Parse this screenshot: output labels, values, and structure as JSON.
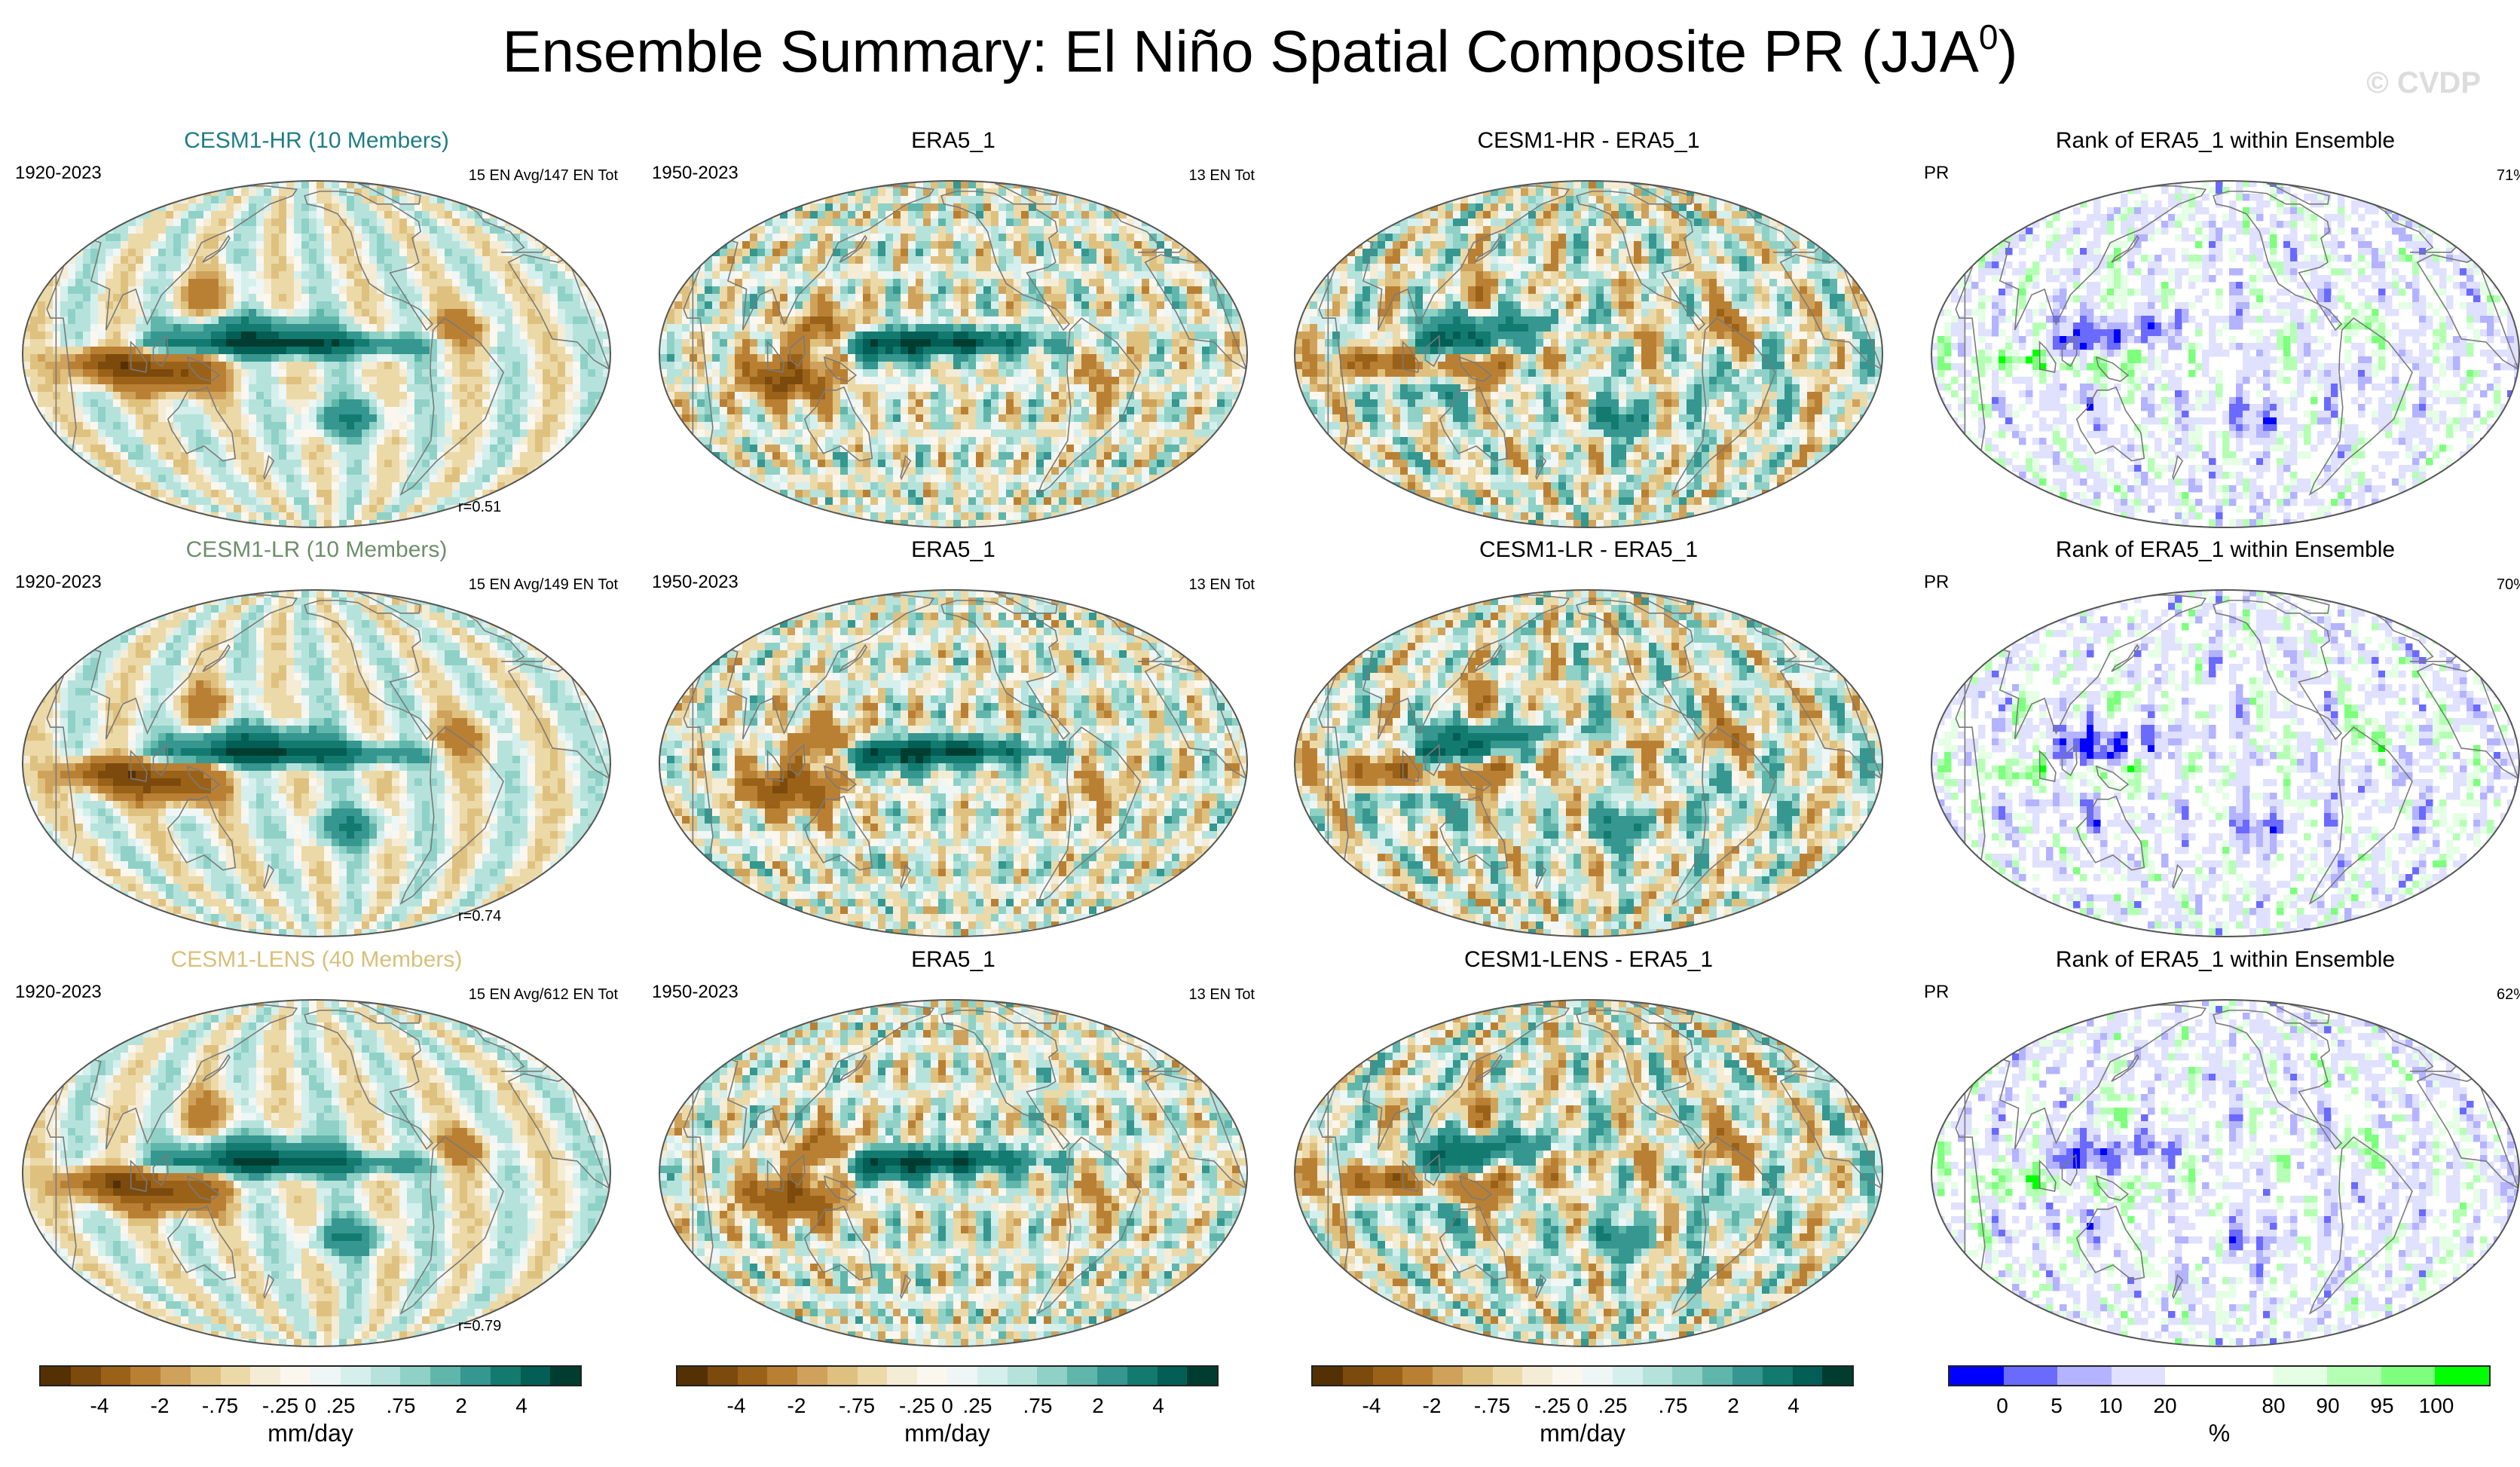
{
  "title": {
    "main": "Ensemble Summary: El Niño Spatial Composite PR (JJA",
    "sup": "0",
    "close": ")"
  },
  "watermark": "© CVDP",
  "colors": {
    "brown_green": [
      "#543005",
      "#7c4a0c",
      "#9a6218",
      "#b98034",
      "#cfa25b",
      "#dfc17f",
      "#ecd9a8",
      "#f5ecd5",
      "#fbf7ee",
      "#eef6f6",
      "#d5efed",
      "#b5e3dc",
      "#8fd1c6",
      "#60b6aa",
      "#35978f",
      "#137a70",
      "#035e55",
      "#003c30"
    ],
    "rank": [
      "#0000ff",
      "#6a6aff",
      "#b3b3ff",
      "#e0e0ff",
      "#ffffff",
      "#ffffff",
      "#e4ffe4",
      "#b5ffb5",
      "#7eff7e",
      "#00ff00"
    ],
    "coast": "#7a7a7a",
    "title_hr": "#1f7d86",
    "title_lr": "#6e8f6b",
    "title_lens": "#d8c07a"
  },
  "rows": [
    {
      "panels": [
        {
          "title": "CESM1-HR (10 Members)",
          "title_color": "#1f7d86",
          "left": "1920-2023",
          "right": "15 EN Avg/147 EN Tot",
          "corr": "r=0.51",
          "kind": "model",
          "model": "hr"
        },
        {
          "title": "ERA5_1",
          "left": "1950-2023",
          "right": "13 EN Tot",
          "kind": "obs"
        },
        {
          "title": "CESM1-HR - ERA5_1",
          "kind": "diff",
          "model": "hr"
        },
        {
          "title": "Rank of ERA5_1 within Ensemble",
          "left": "PR",
          "right": "71%",
          "kind": "rank",
          "seed": 11
        }
      ]
    },
    {
      "panels": [
        {
          "title": "CESM1-LR (10 Members)",
          "title_color": "#6e8f6b",
          "left": "1920-2023",
          "right": "15 EN Avg/149 EN Tot",
          "corr": "r=0.74",
          "kind": "model",
          "model": "lr"
        },
        {
          "title": "ERA5_1",
          "left": "1950-2023",
          "right": "13 EN Tot",
          "kind": "obs"
        },
        {
          "title": "CESM1-LR - ERA5_1",
          "kind": "diff",
          "model": "lr"
        },
        {
          "title": "Rank of ERA5_1 within Ensemble",
          "left": "PR",
          "right": "70%",
          "kind": "rank",
          "seed": 23
        }
      ]
    },
    {
      "panels": [
        {
          "title": "CESM1-LENS (40 Members)",
          "title_color": "#d8c07a",
          "left": "1920-2023",
          "right": "15 EN Avg/612 EN Tot",
          "corr": "r=0.79",
          "kind": "model",
          "model": "lens"
        },
        {
          "title": "ERA5_1",
          "left": "1950-2023",
          "right": "13 EN Tot",
          "kind": "obs"
        },
        {
          "title": "CESM1-LENS - ERA5_1",
          "kind": "diff",
          "model": "lens"
        },
        {
          "title": "Rank of ERA5_1 within Ensemble",
          "left": "PR",
          "right": "62%",
          "kind": "rank",
          "seed": 37
        }
      ]
    }
  ],
  "colorbars": [
    {
      "ticks": [
        "-4",
        "-2",
        "-.75",
        "-.25",
        "0",
        ".25",
        ".75",
        "2",
        "4"
      ],
      "unit": "mm/day",
      "palette": "brown_green"
    },
    {
      "ticks": [
        "-4",
        "-2",
        "-.75",
        "-.25",
        "0",
        ".25",
        ".75",
        "2",
        "4"
      ],
      "unit": "mm/day",
      "palette": "brown_green"
    },
    {
      "ticks": [
        "-4",
        "-2",
        "-.75",
        "-.25",
        "0",
        ".25",
        ".75",
        "2",
        "4"
      ],
      "unit": "mm/day",
      "palette": "brown_green"
    },
    {
      "ticks": [
        "0",
        "5",
        "10",
        "20",
        "80",
        "90",
        "95",
        "100"
      ],
      "unit": "%",
      "palette": "rank"
    }
  ],
  "chart_data": {
    "type": "heatmap",
    "title": "Ensemble Summary: El Niño Spatial Composite PR (JJA0)",
    "variable": "PR",
    "units": "mm/day",
    "levels": [
      -4,
      -3,
      -2,
      -1,
      -0.75,
      -0.5,
      -0.25,
      -0.1,
      0,
      0.1,
      0.25,
      0.5,
      0.75,
      1,
      2,
      3,
      4
    ],
    "colorbar_ticks": [
      "-4",
      "-2",
      "-.75",
      "-.25",
      "0",
      ".25",
      ".75",
      "2",
      "4"
    ],
    "rank_levels": [
      0,
      5,
      10,
      20,
      80,
      90,
      95,
      100
    ],
    "rank_ticks": [
      "0",
      "5",
      "10",
      "20",
      "80",
      "90",
      "95",
      "100"
    ],
    "models": [
      {
        "name": "CESM1-HR",
        "members": 10,
        "years": "1920-2023",
        "en_avg": 15,
        "en_tot": 147,
        "pattern_corr": 0.51,
        "rank_pct": 71
      },
      {
        "name": "CESM1-LR",
        "members": 10,
        "years": "1920-2023",
        "en_avg": 15,
        "en_tot": 149,
        "pattern_corr": 0.74,
        "rank_pct": 70
      },
      {
        "name": "CESM1-LENS",
        "members": 40,
        "years": "1920-2023",
        "en_avg": 15,
        "en_tot": 612,
        "pattern_corr": 0.79,
        "rank_pct": 62
      }
    ],
    "observations": {
      "name": "ERA5_1",
      "years": "1950-2023",
      "en_tot": 13
    }
  }
}
